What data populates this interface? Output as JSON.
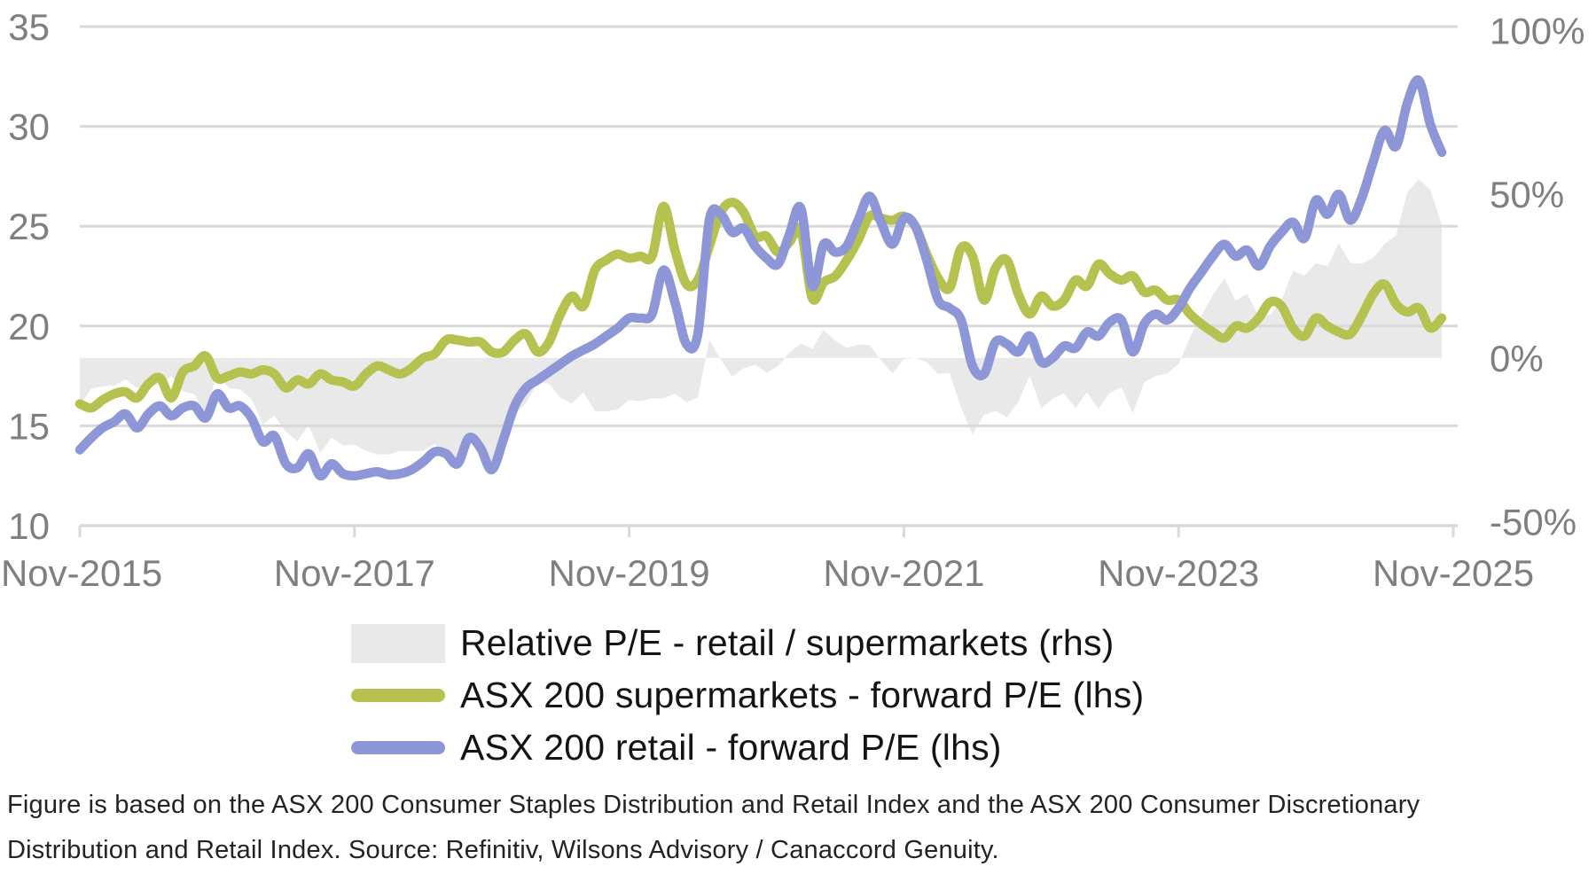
{
  "chart_data": {
    "type": "line",
    "title": "",
    "x_axis": {
      "start": "Nov-2015",
      "interval": "monthly",
      "points": 120,
      "tick_labels": [
        "Nov-2015",
        "Nov-2017",
        "Nov-2019",
        "Nov-2021",
        "Nov-2023",
        "Nov-2025"
      ],
      "tick_month_indices": [
        0,
        24,
        48,
        72,
        96,
        120
      ]
    },
    "left_axis": {
      "min": 10,
      "max": 35,
      "ticks": [
        35,
        30,
        25,
        20,
        15,
        10
      ]
    },
    "right_axis": {
      "ticks": [
        {
          "label": "100%",
          "value": 100
        },
        {
          "label": "50%",
          "value": 50
        },
        {
          "label": "0%",
          "value": 0
        },
        {
          "label": "-50%",
          "value": -50
        }
      ],
      "zero_at_lhs": 18.4,
      "lhs_per_percent": 0.164
    },
    "grid": "horizontal",
    "legend_position": "bottom",
    "series": [
      {
        "name": "Relative P/E - retail / supermarkets (rhs)",
        "type": "area",
        "axis": "rhs",
        "color": "#e9e9e9",
        "derived_from": "retail forward P/E divided by supermarkets forward P/E, minus 1 (percent)"
      },
      {
        "name": "ASX 200 supermarkets - forward P/E (lhs)",
        "type": "line",
        "axis": "lhs",
        "color": "#b5c24f",
        "values": [
          16.1,
          15.9,
          16.3,
          16.6,
          16.7,
          16.4,
          17.1,
          17.4,
          16.4,
          17.7,
          18.0,
          18.5,
          17.4,
          17.5,
          17.7,
          17.6,
          17.8,
          17.6,
          16.9,
          17.3,
          17.1,
          17.6,
          17.3,
          17.2,
          17.0,
          17.6,
          18.0,
          17.8,
          17.6,
          17.9,
          18.4,
          18.6,
          19.3,
          19.3,
          19.2,
          19.2,
          18.7,
          18.7,
          19.3,
          19.6,
          18.7,
          19.2,
          20.6,
          21.5,
          21.0,
          22.8,
          23.3,
          23.6,
          23.4,
          23.5,
          23.5,
          26.0,
          23.8,
          22.1,
          22.3,
          24.0,
          25.7,
          26.2,
          25.7,
          24.5,
          24.5,
          23.7,
          24.2,
          24.8,
          21.4,
          22.2,
          22.5,
          23.3,
          24.3,
          25.5,
          25.4,
          25.3,
          25.5,
          25.0,
          23.6,
          22.4,
          21.9,
          23.9,
          23.5,
          21.3,
          22.9,
          23.3,
          21.6,
          20.6,
          21.5,
          21.0,
          21.3,
          22.3,
          22.0,
          23.1,
          22.6,
          22.3,
          22.5,
          21.7,
          21.8,
          21.3,
          21.3,
          20.6,
          20.1,
          19.7,
          19.4,
          20.0,
          19.9,
          20.4,
          21.2,
          21.0,
          19.9,
          19.5,
          20.4,
          20.0,
          19.7,
          19.6,
          20.5,
          21.6,
          22.1,
          21.1,
          20.7,
          20.9,
          19.9,
          20.4
        ]
      },
      {
        "name": "ASX 200 retail - forward P/E (lhs)",
        "type": "line",
        "axis": "lhs",
        "color": "#8d96d7",
        "values": [
          13.8,
          14.4,
          14.9,
          15.2,
          15.6,
          14.9,
          15.6,
          16.0,
          15.5,
          15.9,
          16.0,
          15.4,
          16.6,
          15.9,
          16.0,
          15.4,
          14.2,
          14.5,
          13.1,
          12.9,
          13.6,
          12.5,
          13.1,
          12.6,
          12.5,
          12.6,
          12.7,
          12.55,
          12.6,
          12.8,
          13.2,
          13.7,
          13.6,
          13.1,
          14.4,
          13.9,
          12.8,
          14.3,
          16.0,
          16.9,
          17.3,
          17.7,
          18.1,
          18.5,
          18.8,
          19.1,
          19.5,
          19.9,
          20.4,
          20.4,
          20.6,
          22.8,
          21.2,
          19.1,
          19.6,
          25.3,
          25.6,
          24.7,
          24.9,
          24.0,
          23.4,
          23.1,
          24.6,
          25.9,
          22.0,
          24.1,
          23.7,
          24.0,
          25.3,
          26.5,
          25.2,
          24.1,
          25.4,
          25.0,
          23.3,
          21.3,
          20.9,
          20.3,
          18.0,
          17.6,
          19.2,
          19.1,
          18.7,
          19.5,
          18.2,
          18.4,
          19.0,
          18.9,
          19.7,
          19.5,
          20.2,
          20.3,
          18.7,
          20.1,
          20.6,
          20.3,
          20.9,
          21.9,
          22.7,
          23.5,
          24.1,
          23.5,
          23.8,
          23.0,
          24.0,
          24.7,
          25.2,
          24.4,
          26.3,
          25.6,
          26.6,
          25.3,
          26.4,
          28.2,
          29.8,
          29.0,
          31.2,
          32.3,
          30.1,
          28.7
        ]
      }
    ]
  },
  "legend": {
    "items": [
      "Relative P/E - retail / supermarkets (rhs)",
      "ASX 200 supermarkets - forward P/E (lhs)",
      "ASX 200 retail - forward P/E (lhs)"
    ]
  },
  "footer": {
    "line1": "Figure is based on the ASX 200 Consumer Staples Distribution and Retail Index and the ASX 200 Consumer Discretionary",
    "line2": "Distribution and Retail Index. Source: Refinitiv, Wilsons Advisory / Canaccord Genuity."
  },
  "style": {
    "axis_text_color": "#7f7f7f",
    "grid_color": "#d9d9d9",
    "legend_text_color": "#141414",
    "footnote_text_color": "#232323",
    "background": "#ffffff"
  }
}
